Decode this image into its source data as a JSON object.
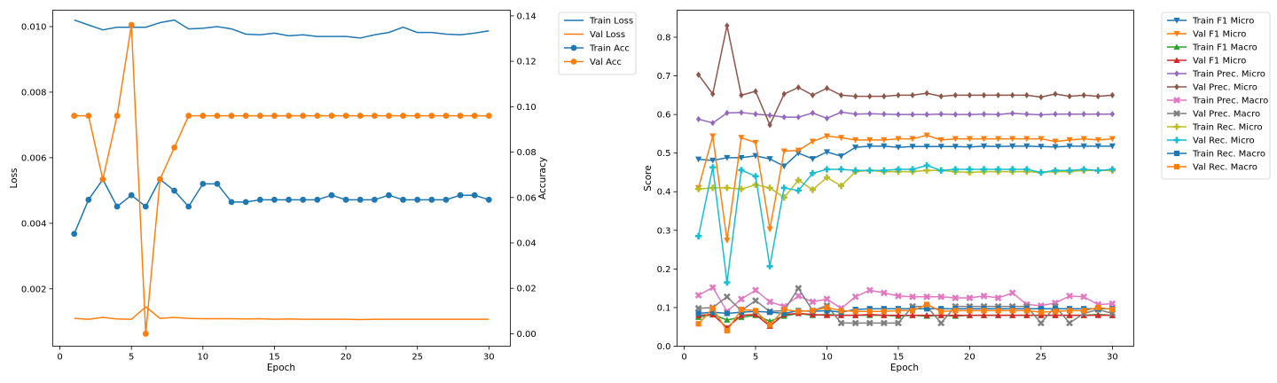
{
  "colors": {
    "C0": "#1f77b4",
    "C1": "#ff7f0e",
    "C2": "#2ca02c",
    "C3": "#d62728",
    "C4": "#9467bd",
    "C5": "#8c564b",
    "C6": "#e377c2",
    "C7": "#7f7f7f",
    "C8": "#bcbd22",
    "C9": "#17becf"
  },
  "chart_data": [
    {
      "type": "line",
      "xlabel": "Epoch",
      "ylabel_left": "Loss",
      "ylabel_right": "Accuracy",
      "xlim": [
        -0.5,
        31.5
      ],
      "xticks": [
        0,
        5,
        10,
        15,
        20,
        25,
        30
      ],
      "ylim_left": [
        0.00025,
        0.0105
      ],
      "yticks_left": [
        0.002,
        0.004,
        0.006,
        0.008,
        0.01
      ],
      "ylim_right": [
        -0.0055,
        0.1425
      ],
      "yticks_right": [
        0.0,
        0.02,
        0.04,
        0.06,
        0.08,
        0.1,
        0.12,
        0.14
      ],
      "legend_position": "outside-top-right",
      "x": [
        1,
        2,
        3,
        4,
        5,
        6,
        7,
        8,
        9,
        10,
        11,
        12,
        13,
        14,
        15,
        16,
        17,
        18,
        19,
        20,
        21,
        22,
        23,
        24,
        25,
        26,
        27,
        28,
        29,
        30
      ],
      "series": [
        {
          "name": "Train Loss",
          "axis": "left",
          "color": "C0",
          "marker": "none",
          "values": [
            0.0102,
            0.01005,
            0.0099,
            0.00998,
            0.00998,
            0.00998,
            0.01012,
            0.0102,
            0.00993,
            0.00995,
            0.01,
            0.00993,
            0.00977,
            0.00975,
            0.0098,
            0.00972,
            0.00975,
            0.0097,
            0.0097,
            0.0097,
            0.00965,
            0.00975,
            0.00982,
            0.00998,
            0.00982,
            0.00982,
            0.00977,
            0.00975,
            0.0098,
            0.00987
          ]
        },
        {
          "name": "Val Loss",
          "axis": "left",
          "color": "C1",
          "marker": "none",
          "values": [
            0.0011,
            0.00107,
            0.00113,
            0.00108,
            0.00107,
            0.00145,
            0.0011,
            0.00113,
            0.0011,
            0.00109,
            0.00109,
            0.00109,
            0.00108,
            0.00109,
            0.00107,
            0.00108,
            0.00107,
            0.00107,
            0.00107,
            0.00107,
            0.00106,
            0.00107,
            0.00107,
            0.00107,
            0.00107,
            0.00107,
            0.00107,
            0.00107,
            0.00107,
            0.00107
          ]
        },
        {
          "name": "Train Acc",
          "axis": "right",
          "color": "C0",
          "marker": "circle",
          "values": [
            0.044,
            0.059,
            0.068,
            0.056,
            0.061,
            0.056,
            0.068,
            0.063,
            0.056,
            0.066,
            0.066,
            0.058,
            0.058,
            0.059,
            0.059,
            0.059,
            0.059,
            0.059,
            0.061,
            0.059,
            0.059,
            0.059,
            0.061,
            0.059,
            0.059,
            0.059,
            0.059,
            0.061,
            0.061,
            0.059
          ]
        },
        {
          "name": "Val Acc",
          "axis": "right",
          "color": "C1",
          "marker": "circle",
          "values": [
            0.096,
            0.096,
            0.068,
            0.096,
            0.136,
            0.0,
            0.068,
            0.082,
            0.096,
            0.096,
            0.096,
            0.096,
            0.096,
            0.096,
            0.096,
            0.096,
            0.096,
            0.096,
            0.096,
            0.096,
            0.096,
            0.096,
            0.096,
            0.096,
            0.096,
            0.096,
            0.096,
            0.096,
            0.096,
            0.096
          ]
        }
      ]
    },
    {
      "type": "line",
      "xlabel": "Epoch",
      "ylabel": "Score",
      "xlim": [
        -0.5,
        31.5
      ],
      "xticks": [
        0,
        5,
        10,
        15,
        20,
        25,
        30
      ],
      "ylim": [
        0.0,
        0.87
      ],
      "yticks": [
        0.0,
        0.1,
        0.2,
        0.3,
        0.4,
        0.5,
        0.6,
        0.7,
        0.8
      ],
      "legend_position": "outside-top-right",
      "x": [
        1,
        2,
        3,
        4,
        5,
        6,
        7,
        8,
        9,
        10,
        11,
        12,
        13,
        14,
        15,
        16,
        17,
        18,
        19,
        20,
        21,
        22,
        23,
        24,
        25,
        26,
        27,
        28,
        29,
        30
      ],
      "series": [
        {
          "name": "Train F1 Micro",
          "color": "C0",
          "marker": "triangle-down",
          "values": [
            0.484,
            0.481,
            0.488,
            0.488,
            0.493,
            0.485,
            0.466,
            0.5,
            0.485,
            0.503,
            0.492,
            0.515,
            0.518,
            0.518,
            0.515,
            0.517,
            0.517,
            0.517,
            0.517,
            0.516,
            0.518,
            0.517,
            0.518,
            0.518,
            0.517,
            0.516,
            0.518,
            0.518,
            0.518,
            0.518
          ]
        },
        {
          "name": "Val F1 Micro",
          "color": "C1",
          "marker": "triangle-down",
          "values": [
            0.41,
            0.544,
            0.274,
            0.54,
            0.527,
            0.303,
            0.505,
            0.507,
            0.53,
            0.544,
            0.54,
            0.534,
            0.534,
            0.534,
            0.537,
            0.537,
            0.546,
            0.534,
            0.537,
            0.537,
            0.537,
            0.537,
            0.537,
            0.537,
            0.537,
            0.53,
            0.534,
            0.537,
            0.534,
            0.537
          ]
        },
        {
          "name": "Train F1 Macro",
          "color": "C2",
          "marker": "triangle-up",
          "values": [
            0.075,
            0.082,
            0.068,
            0.075,
            0.08,
            0.065,
            0.078,
            0.085,
            0.08,
            0.082,
            0.08,
            0.08,
            0.08,
            0.08,
            0.078,
            0.08,
            0.078,
            0.08,
            0.078,
            0.08,
            0.08,
            0.08,
            0.08,
            0.08,
            0.08,
            0.08,
            0.08,
            0.08,
            0.082,
            0.08
          ]
        },
        {
          "name": "Val F1 Micro",
          "color": "C3",
          "marker": "triangle-up",
          "values": [
            0.08,
            0.082,
            0.048,
            0.08,
            0.082,
            0.052,
            0.082,
            0.085,
            0.082,
            0.08,
            0.08,
            0.08,
            0.082,
            0.08,
            0.08,
            0.08,
            0.08,
            0.08,
            0.08,
            0.08,
            0.08,
            0.08,
            0.08,
            0.08,
            0.08,
            0.08,
            0.08,
            0.08,
            0.08,
            0.08
          ]
        },
        {
          "name": "Train Prec. Micro",
          "color": "C4",
          "marker": "diamond",
          "values": [
            0.588,
            0.578,
            0.604,
            0.605,
            0.601,
            0.598,
            0.593,
            0.593,
            0.604,
            0.59,
            0.606,
            0.601,
            0.602,
            0.601,
            0.6,
            0.6,
            0.6,
            0.601,
            0.6,
            0.6,
            0.601,
            0.6,
            0.603,
            0.601,
            0.599,
            0.601,
            0.601,
            0.601,
            0.601,
            0.601
          ]
        },
        {
          "name": "Val Prec. Micro",
          "color": "C5",
          "marker": "diamond",
          "values": [
            0.703,
            0.653,
            0.83,
            0.65,
            0.66,
            0.573,
            0.653,
            0.67,
            0.65,
            0.668,
            0.65,
            0.647,
            0.647,
            0.647,
            0.65,
            0.65,
            0.655,
            0.647,
            0.65,
            0.65,
            0.65,
            0.65,
            0.65,
            0.65,
            0.645,
            0.653,
            0.647,
            0.65,
            0.647,
            0.65
          ]
        },
        {
          "name": "Train Prec. Macro",
          "color": "C6",
          "marker": "x",
          "values": [
            0.132,
            0.152,
            0.09,
            0.122,
            0.145,
            0.115,
            0.103,
            0.13,
            0.115,
            0.122,
            0.098,
            0.128,
            0.145,
            0.138,
            0.13,
            0.128,
            0.128,
            0.128,
            0.125,
            0.125,
            0.13,
            0.125,
            0.138,
            0.108,
            0.105,
            0.112,
            0.13,
            0.128,
            0.108,
            0.11
          ]
        },
        {
          "name": "Val Prec. Macro",
          "color": "C7",
          "marker": "x",
          "values": [
            0.098,
            0.1,
            0.128,
            0.092,
            0.118,
            0.09,
            0.092,
            0.15,
            0.092,
            0.105,
            0.06,
            0.06,
            0.06,
            0.06,
            0.06,
            0.103,
            0.103,
            0.06,
            0.103,
            0.103,
            0.103,
            0.103,
            0.103,
            0.103,
            0.06,
            0.103,
            0.06,
            0.085,
            0.095,
            0.085
          ]
        },
        {
          "name": "Train Rec. Micro",
          "color": "C8",
          "marker": "plus",
          "values": [
            0.407,
            0.41,
            0.41,
            0.407,
            0.418,
            0.41,
            0.385,
            0.43,
            0.405,
            0.437,
            0.415,
            0.452,
            0.455,
            0.452,
            0.452,
            0.452,
            0.455,
            0.455,
            0.452,
            0.45,
            0.452,
            0.452,
            0.452,
            0.452,
            0.45,
            0.452,
            0.452,
            0.455,
            0.455,
            0.455
          ]
        },
        {
          "name": "Val Rec. Micro",
          "color": "C9",
          "marker": "plus",
          "values": [
            0.285,
            0.463,
            0.165,
            0.456,
            0.44,
            0.207,
            0.41,
            0.403,
            0.448,
            0.458,
            0.458,
            0.455,
            0.455,
            0.455,
            0.458,
            0.458,
            0.468,
            0.455,
            0.458,
            0.458,
            0.458,
            0.458,
            0.458,
            0.458,
            0.45,
            0.455,
            0.455,
            0.458,
            0.455,
            0.458
          ]
        },
        {
          "name": "Train Rec. Macro",
          "color": "C0",
          "marker": "square",
          "values": [
            0.085,
            0.088,
            0.085,
            0.088,
            0.09,
            0.088,
            0.085,
            0.092,
            0.09,
            0.092,
            0.088,
            0.095,
            0.097,
            0.097,
            0.097,
            0.097,
            0.097,
            0.097,
            0.097,
            0.097,
            0.097,
            0.097,
            0.097,
            0.097,
            0.097,
            0.097,
            0.097,
            0.097,
            0.097,
            0.097
          ]
        },
        {
          "name": "Val Rec. Macro",
          "color": "C1",
          "marker": "square",
          "values": [
            0.058,
            0.098,
            0.04,
            0.095,
            0.092,
            0.055,
            0.095,
            0.09,
            0.092,
            0.1,
            0.092,
            0.09,
            0.09,
            0.09,
            0.092,
            0.092,
            0.108,
            0.09,
            0.092,
            0.092,
            0.092,
            0.092,
            0.092,
            0.092,
            0.088,
            0.09,
            0.092,
            0.092,
            0.1,
            0.095
          ]
        }
      ]
    }
  ]
}
